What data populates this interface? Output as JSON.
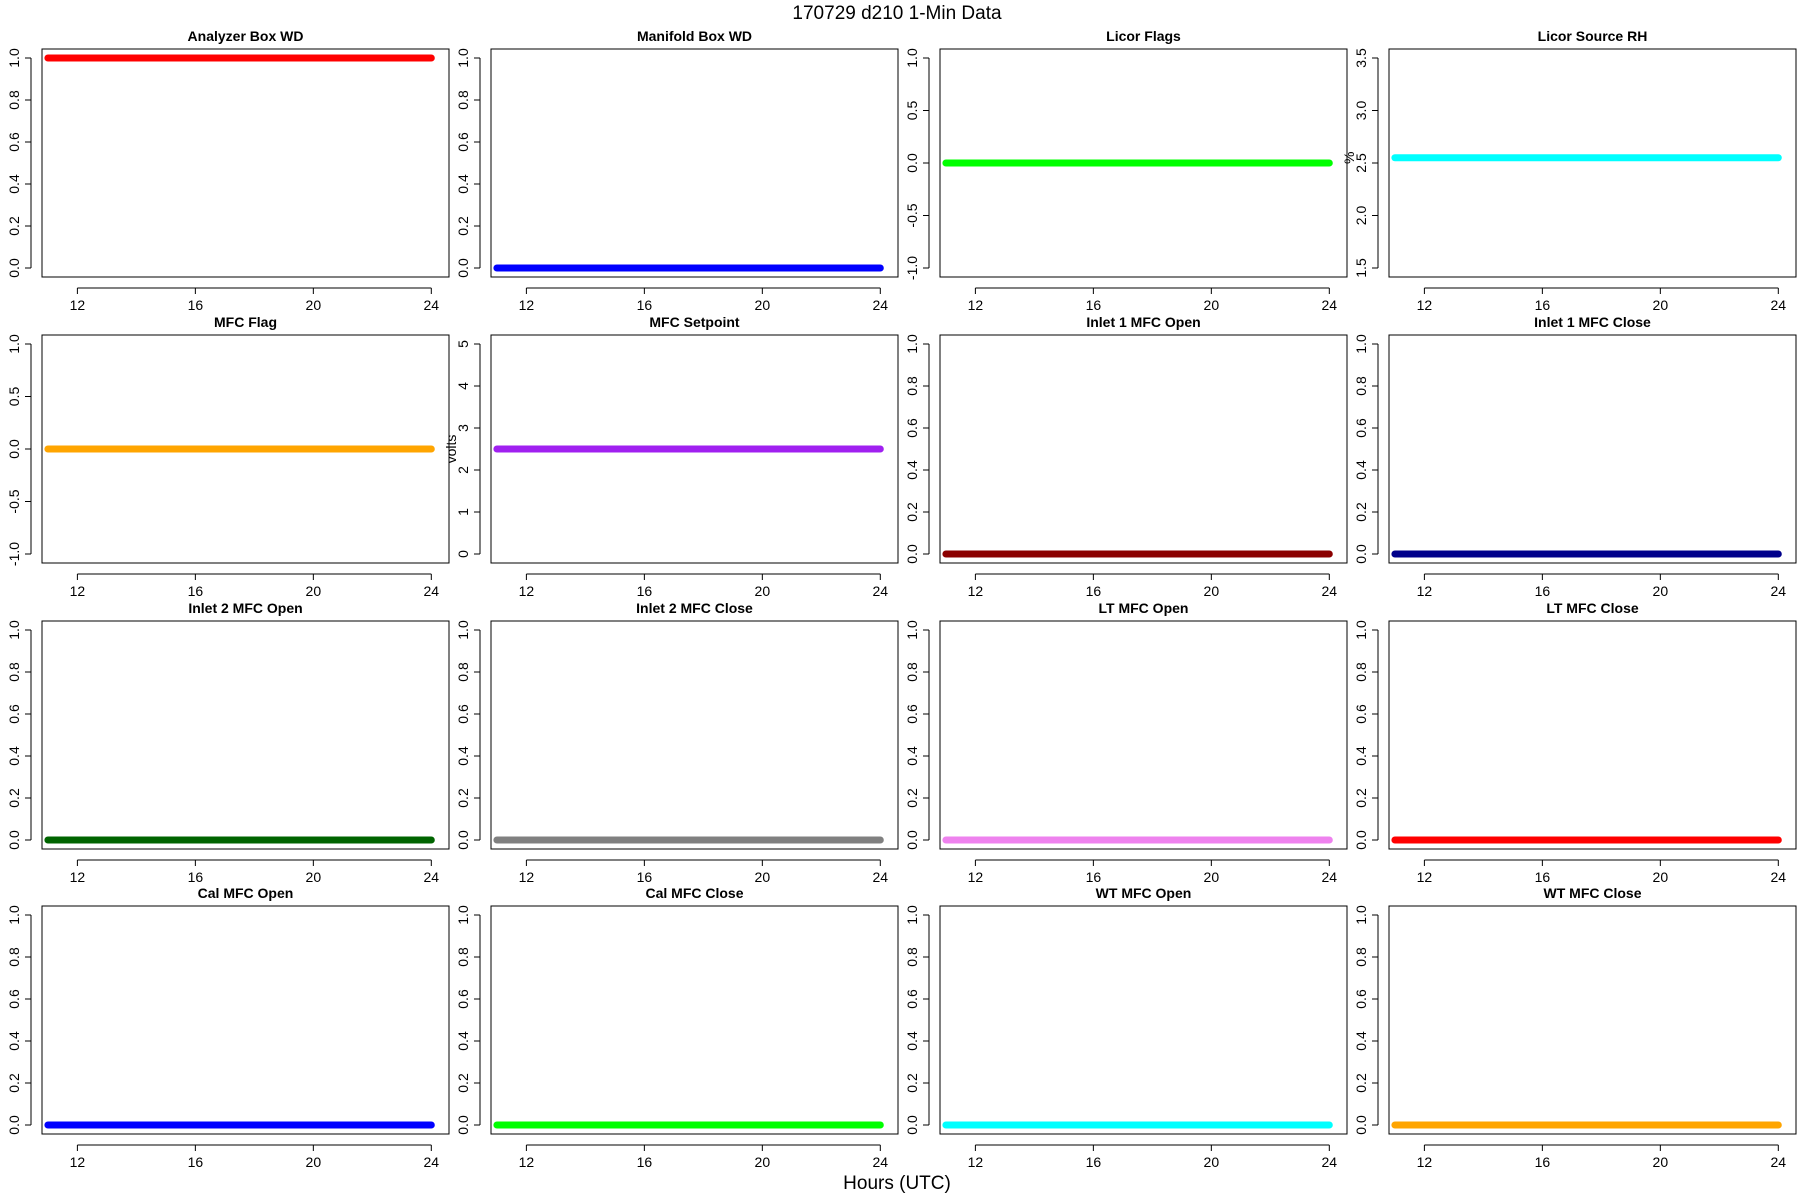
{
  "figure": {
    "title": "170729   d210   1-Min Data",
    "xlabel": "Hours (UTC)"
  },
  "chart_data": [
    {
      "type": "scatter",
      "title": "Analyzer Box WD",
      "ylabel": "",
      "color": "#ff0000",
      "x": [
        11,
        24
      ],
      "y": [
        1.0,
        1.0
      ],
      "xlim": [
        10.8,
        24.6
      ],
      "ylim": [
        0,
        1
      ],
      "xticks": [
        12,
        16,
        20,
        24
      ],
      "yticks": [
        "0.0",
        "0.2",
        "0.4",
        "0.6",
        "0.8",
        "1.0"
      ]
    },
    {
      "type": "scatter",
      "title": "Manifold Box WD",
      "ylabel": "",
      "color": "#0000ff",
      "x": [
        11,
        24
      ],
      "y": [
        0.0,
        0.0
      ],
      "xlim": [
        10.8,
        24.6
      ],
      "ylim": [
        0,
        1
      ],
      "xticks": [
        12,
        16,
        20,
        24
      ],
      "yticks": [
        "0.0",
        "0.2",
        "0.4",
        "0.6",
        "0.8",
        "1.0"
      ]
    },
    {
      "type": "scatter",
      "title": "Licor Flags",
      "ylabel": "",
      "color": "#00ff00",
      "x": [
        11,
        24
      ],
      "y": [
        0.0,
        0.0
      ],
      "xlim": [
        10.8,
        24.6
      ],
      "ylim": [
        -1,
        1
      ],
      "xticks": [
        12,
        16,
        20,
        24
      ],
      "yticks": [
        "-1.0",
        "-0.5",
        "0.0",
        "0.5",
        "1.0"
      ]
    },
    {
      "type": "scatter",
      "title": "Licor Source RH",
      "ylabel": "%",
      "color": "#00ffff",
      "x": [
        11,
        24
      ],
      "y": [
        2.55,
        2.55
      ],
      "xlim": [
        10.8,
        24.6
      ],
      "ylim": [
        1.5,
        3.5
      ],
      "xticks": [
        12,
        16,
        20,
        24
      ],
      "yticks": [
        "1.5",
        "2.0",
        "2.5",
        "3.0",
        "3.5"
      ]
    },
    {
      "type": "scatter",
      "title": "MFC Flag",
      "ylabel": "",
      "color": "#ffa500",
      "x": [
        11,
        24
      ],
      "y": [
        0.0,
        0.0
      ],
      "xlim": [
        10.8,
        24.6
      ],
      "ylim": [
        -1,
        1
      ],
      "xticks": [
        12,
        16,
        20,
        24
      ],
      "yticks": [
        "-1.0",
        "-0.5",
        "0.0",
        "0.5",
        "1.0"
      ]
    },
    {
      "type": "scatter",
      "title": "MFC Setpoint",
      "ylabel": "volts",
      "color": "#a020f0",
      "x": [
        11,
        24
      ],
      "y": [
        2.5,
        2.5
      ],
      "xlim": [
        10.8,
        24.6
      ],
      "ylim": [
        0,
        5
      ],
      "xticks": [
        12,
        16,
        20,
        24
      ],
      "yticks": [
        "0",
        "1",
        "2",
        "3",
        "4",
        "5"
      ]
    },
    {
      "type": "scatter",
      "title": "Inlet 1 MFC Open",
      "ylabel": "",
      "color": "#8b0000",
      "x": [
        11,
        24
      ],
      "y": [
        0.0,
        0.0
      ],
      "xlim": [
        10.8,
        24.6
      ],
      "ylim": [
        0,
        1
      ],
      "xticks": [
        12,
        16,
        20,
        24
      ],
      "yticks": [
        "0.0",
        "0.2",
        "0.4",
        "0.6",
        "0.8",
        "1.0"
      ]
    },
    {
      "type": "scatter",
      "title": "Inlet 1 MFC Close",
      "ylabel": "",
      "color": "#00008b",
      "x": [
        11,
        24
      ],
      "y": [
        0.0,
        0.0
      ],
      "xlim": [
        10.8,
        24.6
      ],
      "ylim": [
        0,
        1
      ],
      "xticks": [
        12,
        16,
        20,
        24
      ],
      "yticks": [
        "0.0",
        "0.2",
        "0.4",
        "0.6",
        "0.8",
        "1.0"
      ]
    },
    {
      "type": "scatter",
      "title": "Inlet 2 MFC Open",
      "ylabel": "",
      "color": "#006400",
      "x": [
        11,
        24
      ],
      "y": [
        0.0,
        0.0
      ],
      "xlim": [
        10.8,
        24.6
      ],
      "ylim": [
        0,
        1
      ],
      "xticks": [
        12,
        16,
        20,
        24
      ],
      "yticks": [
        "0.0",
        "0.2",
        "0.4",
        "0.6",
        "0.8",
        "1.0"
      ]
    },
    {
      "type": "scatter",
      "title": "Inlet 2 MFC Close",
      "ylabel": "",
      "color": "#808080",
      "x": [
        11,
        24
      ],
      "y": [
        0.0,
        0.0
      ],
      "xlim": [
        10.8,
        24.6
      ],
      "ylim": [
        0,
        1
      ],
      "xticks": [
        12,
        16,
        20,
        24
      ],
      "yticks": [
        "0.0",
        "0.2",
        "0.4",
        "0.6",
        "0.8",
        "1.0"
      ]
    },
    {
      "type": "scatter",
      "title": "LT MFC Open",
      "ylabel": "",
      "color": "#ee82ee",
      "x": [
        11,
        24
      ],
      "y": [
        0.0,
        0.0
      ],
      "xlim": [
        10.8,
        24.6
      ],
      "ylim": [
        0,
        1
      ],
      "xticks": [
        12,
        16,
        20,
        24
      ],
      "yticks": [
        "0.0",
        "0.2",
        "0.4",
        "0.6",
        "0.8",
        "1.0"
      ]
    },
    {
      "type": "scatter",
      "title": "LT MFC Close",
      "ylabel": "",
      "color": "#ff0000",
      "x": [
        11,
        24
      ],
      "y": [
        0.0,
        0.0
      ],
      "xlim": [
        10.8,
        24.6
      ],
      "ylim": [
        0,
        1
      ],
      "xticks": [
        12,
        16,
        20,
        24
      ],
      "yticks": [
        "0.0",
        "0.2",
        "0.4",
        "0.6",
        "0.8",
        "1.0"
      ]
    },
    {
      "type": "scatter",
      "title": "Cal MFC Open",
      "ylabel": "",
      "color": "#0000ff",
      "x": [
        11,
        24
      ],
      "y": [
        0.0,
        0.0
      ],
      "xlim": [
        10.8,
        24.6
      ],
      "ylim": [
        0,
        1
      ],
      "xticks": [
        12,
        16,
        20,
        24
      ],
      "yticks": [
        "0.0",
        "0.2",
        "0.4",
        "0.6",
        "0.8",
        "1.0"
      ]
    },
    {
      "type": "scatter",
      "title": "Cal MFC Close",
      "ylabel": "",
      "color": "#00ff00",
      "x": [
        11,
        24
      ],
      "y": [
        0.0,
        0.0
      ],
      "xlim": [
        10.8,
        24.6
      ],
      "ylim": [
        0,
        1
      ],
      "xticks": [
        12,
        16,
        20,
        24
      ],
      "yticks": [
        "0.0",
        "0.2",
        "0.4",
        "0.6",
        "0.8",
        "1.0"
      ]
    },
    {
      "type": "scatter",
      "title": "WT MFC Open",
      "ylabel": "",
      "color": "#00ffff",
      "x": [
        11,
        24
      ],
      "y": [
        0.0,
        0.0
      ],
      "xlim": [
        10.8,
        24.6
      ],
      "ylim": [
        0,
        1
      ],
      "xticks": [
        12,
        16,
        20,
        24
      ],
      "yticks": [
        "0.0",
        "0.2",
        "0.4",
        "0.6",
        "0.8",
        "1.0"
      ]
    },
    {
      "type": "scatter",
      "title": "WT MFC Close",
      "ylabel": "",
      "color": "#ffa500",
      "x": [
        11,
        24
      ],
      "y": [
        0.0,
        0.0
      ],
      "xlim": [
        10.8,
        24.6
      ],
      "ylim": [
        0,
        1
      ],
      "xticks": [
        12,
        16,
        20,
        24
      ],
      "yticks": [
        "0.0",
        "0.2",
        "0.4",
        "0.6",
        "0.8",
        "1.0"
      ]
    }
  ]
}
